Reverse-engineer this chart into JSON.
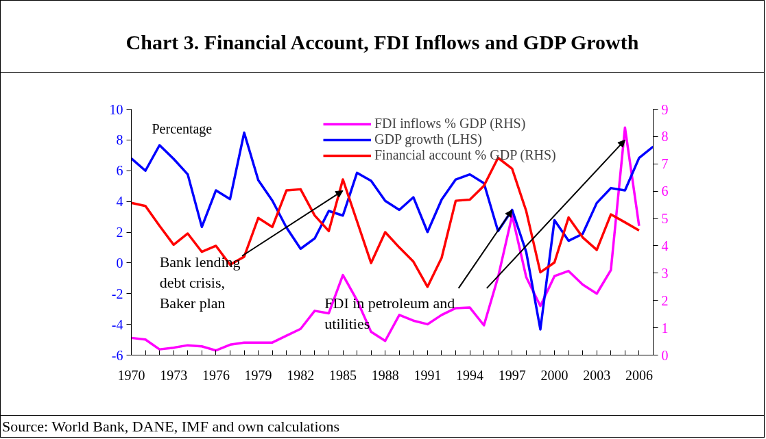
{
  "chart_data": {
    "type": "line",
    "title": "Chart 3. Financial Account, FDI Inflows and GDP Growth",
    "ylabel": "Percentage",
    "x": [
      1970,
      1971,
      1972,
      1973,
      1974,
      1975,
      1976,
      1977,
      1978,
      1979,
      1980,
      1981,
      1982,
      1983,
      1984,
      1985,
      1986,
      1987,
      1988,
      1989,
      1990,
      1991,
      1992,
      1993,
      1994,
      1995,
      1996,
      1997,
      1998,
      1999,
      2000,
      2001,
      2002,
      2003,
      2004,
      2005,
      2006,
      2007
    ],
    "series": [
      {
        "name": "FDI inflows % GDP (RHS)",
        "color": "#ff00ff",
        "axis": "y2",
        "values": [
          0.63,
          0.57,
          0.21,
          0.27,
          0.36,
          0.32,
          0.17,
          0.38,
          0.46,
          0.46,
          0.46,
          0.71,
          0.96,
          1.62,
          1.53,
          2.93,
          2.01,
          0.85,
          0.52,
          1.47,
          1.26,
          1.13,
          1.47,
          1.72,
          1.74,
          1.09,
          2.85,
          5.11,
          2.85,
          1.8,
          2.89,
          3.08,
          2.58,
          2.25,
          3.11,
          8.33,
          4.73,
          null
        ]
      },
      {
        "name": "GDP growth (LHS)",
        "color": "#0000ff",
        "values": [
          6.8,
          6.0,
          7.66,
          6.77,
          5.76,
          2.34,
          4.72,
          4.15,
          8.47,
          5.39,
          4.05,
          2.3,
          0.92,
          1.59,
          3.38,
          3.08,
          5.86,
          5.34,
          4.04,
          3.45,
          4.27,
          2.01,
          4.12,
          5.43,
          5.76,
          5.19,
          2.07,
          3.45,
          0.7,
          -4.33,
          2.78,
          1.44,
          1.89,
          3.9,
          4.87,
          4.72,
          6.83,
          7.57
        ]
      },
      {
        "name": "Financial account % GDP (RHS)",
        "color": "#ff0000",
        "axis": "y2",
        "values": [
          5.57,
          5.46,
          4.73,
          4.04,
          4.45,
          3.78,
          4.0,
          3.31,
          3.6,
          5.02,
          4.69,
          6.03,
          6.07,
          5.11,
          4.54,
          6.43,
          4.9,
          3.37,
          4.5,
          3.94,
          3.42,
          2.5,
          3.56,
          5.65,
          5.69,
          6.2,
          7.22,
          6.82,
          5.27,
          3.03,
          3.39,
          5.04,
          4.31,
          3.85,
          5.15,
          4.86,
          4.56,
          null
        ]
      }
    ],
    "xlim": [
      1970,
      2007
    ],
    "xticks": [
      1970,
      {
        "value": 1971,
        "label": null
      },
      {
        "value": 1972,
        "label": null
      },
      1973,
      {
        "value": 1974,
        "label": null
      },
      {
        "value": 1975,
        "label": null
      },
      1976,
      {
        "value": 1977,
        "label": null
      },
      {
        "value": 1978,
        "label": null
      },
      1979,
      {
        "value": 1980,
        "label": null
      },
      {
        "value": 1981,
        "label": null
      },
      1982,
      {
        "value": 1983,
        "label": null
      },
      {
        "value": 1984,
        "label": null
      },
      1985,
      {
        "value": 1986,
        "label": null
      },
      {
        "value": 1987,
        "label": null
      },
      1988,
      {
        "value": 1989,
        "label": null
      },
      {
        "value": 1990,
        "label": null
      },
      1991,
      {
        "value": 1992,
        "label": null
      },
      {
        "value": 1993,
        "label": null
      },
      1994,
      {
        "value": 1995,
        "label": null
      },
      {
        "value": 1996,
        "label": null
      },
      1997,
      {
        "value": 1998,
        "label": null
      },
      {
        "value": 1999,
        "label": null
      },
      2000,
      {
        "value": 2001,
        "label": null
      },
      {
        "value": 2002,
        "label": null
      },
      2003,
      {
        "value": 2004,
        "label": null
      },
      {
        "value": 2005,
        "label": null
      },
      2006,
      {
        "value": 2007,
        "label": null
      }
    ],
    "ylim": [
      -6,
      10
    ],
    "yticks": [
      -6,
      -4,
      -2,
      0,
      2,
      4,
      6,
      8,
      10
    ],
    "y2lim": [
      0,
      9
    ],
    "y2ticks": [
      0,
      1,
      2,
      3,
      4,
      5,
      6,
      7,
      8,
      9
    ],
    "grid": false,
    "legend": "top right",
    "marker": "none",
    "line_style": "solid",
    "annotations": [
      {
        "text": "Bank lending\ndebt crisis,\nBaker plan",
        "x": 1985,
        "y": 4.7
      },
      {
        "text": "FDI in petroleum and\nutilities",
        "x": 1997,
        "y": 3.45
      },
      "Source: World Bank, DANE, IMF and own calculations"
    ]
  }
}
